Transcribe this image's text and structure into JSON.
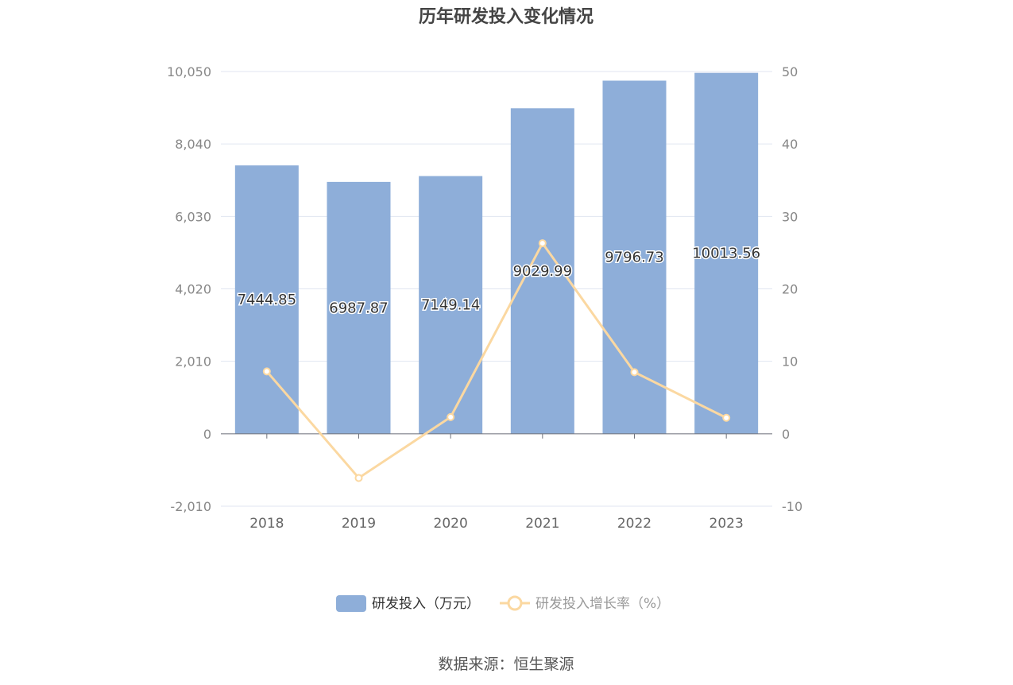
{
  "chart_data": {
    "type": "bar",
    "title": "历年研发投入变化情况",
    "categories": [
      "2018",
      "2019",
      "2020",
      "2021",
      "2022",
      "2023"
    ],
    "series": [
      {
        "name": "研发投入（万元）",
        "type": "bar",
        "axis": "left",
        "values": [
          7444.85,
          6987.87,
          7149.14,
          9029.99,
          9796.73,
          10013.56
        ],
        "labels": [
          "7444.85",
          "6987.87",
          "7149.14",
          "9029.99",
          "9796.73",
          "10013.56"
        ],
        "color": "#8eaed9"
      },
      {
        "name": "研发投入增长率（%）",
        "type": "line",
        "axis": "right",
        "values": [
          8.6,
          -6.1,
          2.3,
          26.3,
          8.5,
          2.2
        ],
        "color": "#fbd8a1"
      }
    ],
    "y_left": {
      "ticks": [
        "10,050",
        "8,040",
        "6,030",
        "4,020",
        "2,010",
        "0",
        "-2,010"
      ],
      "min": -2010,
      "max": 10050
    },
    "y_right": {
      "ticks": [
        "50",
        "40",
        "30",
        "20",
        "10",
        "0",
        "-10"
      ],
      "min": -10,
      "max": 50
    },
    "grid": true,
    "legend_position": "bottom"
  },
  "footer": {
    "source": "数据来源：恒生聚源"
  }
}
